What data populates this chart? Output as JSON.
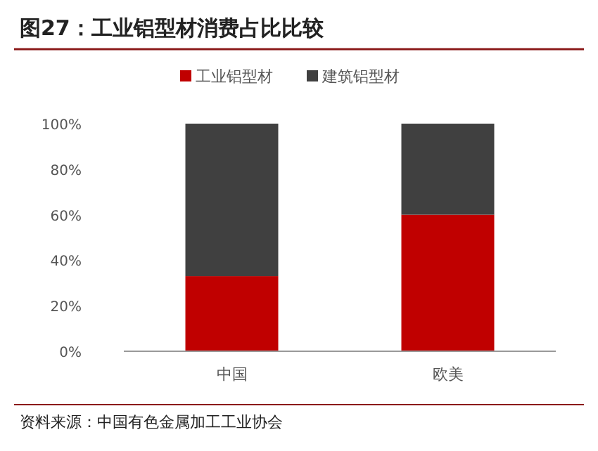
{
  "chart_data": {
    "type": "bar",
    "stacked": true,
    "title": "图27：工业铝型材消费占比比较",
    "categories": [
      "中国",
      "欧美"
    ],
    "series": [
      {
        "name": "工业铝型材",
        "color": "#c00000",
        "values": [
          33,
          60
        ]
      },
      {
        "name": "建筑铝型材",
        "color": "#404040",
        "values": [
          67,
          40
        ]
      }
    ],
    "ylim": [
      0,
      100
    ],
    "yticks": [
      {
        "value": 0,
        "label": "0%"
      },
      {
        "value": 20,
        "label": "20%"
      },
      {
        "value": 40,
        "label": "40%"
      },
      {
        "value": 60,
        "label": "60%"
      },
      {
        "value": 80,
        "label": "80%"
      },
      {
        "value": 100,
        "label": "100%"
      }
    ],
    "legend": "top",
    "grid": false,
    "annotations": [
      "资料来源：中国有色金属加工工业协会"
    ]
  }
}
